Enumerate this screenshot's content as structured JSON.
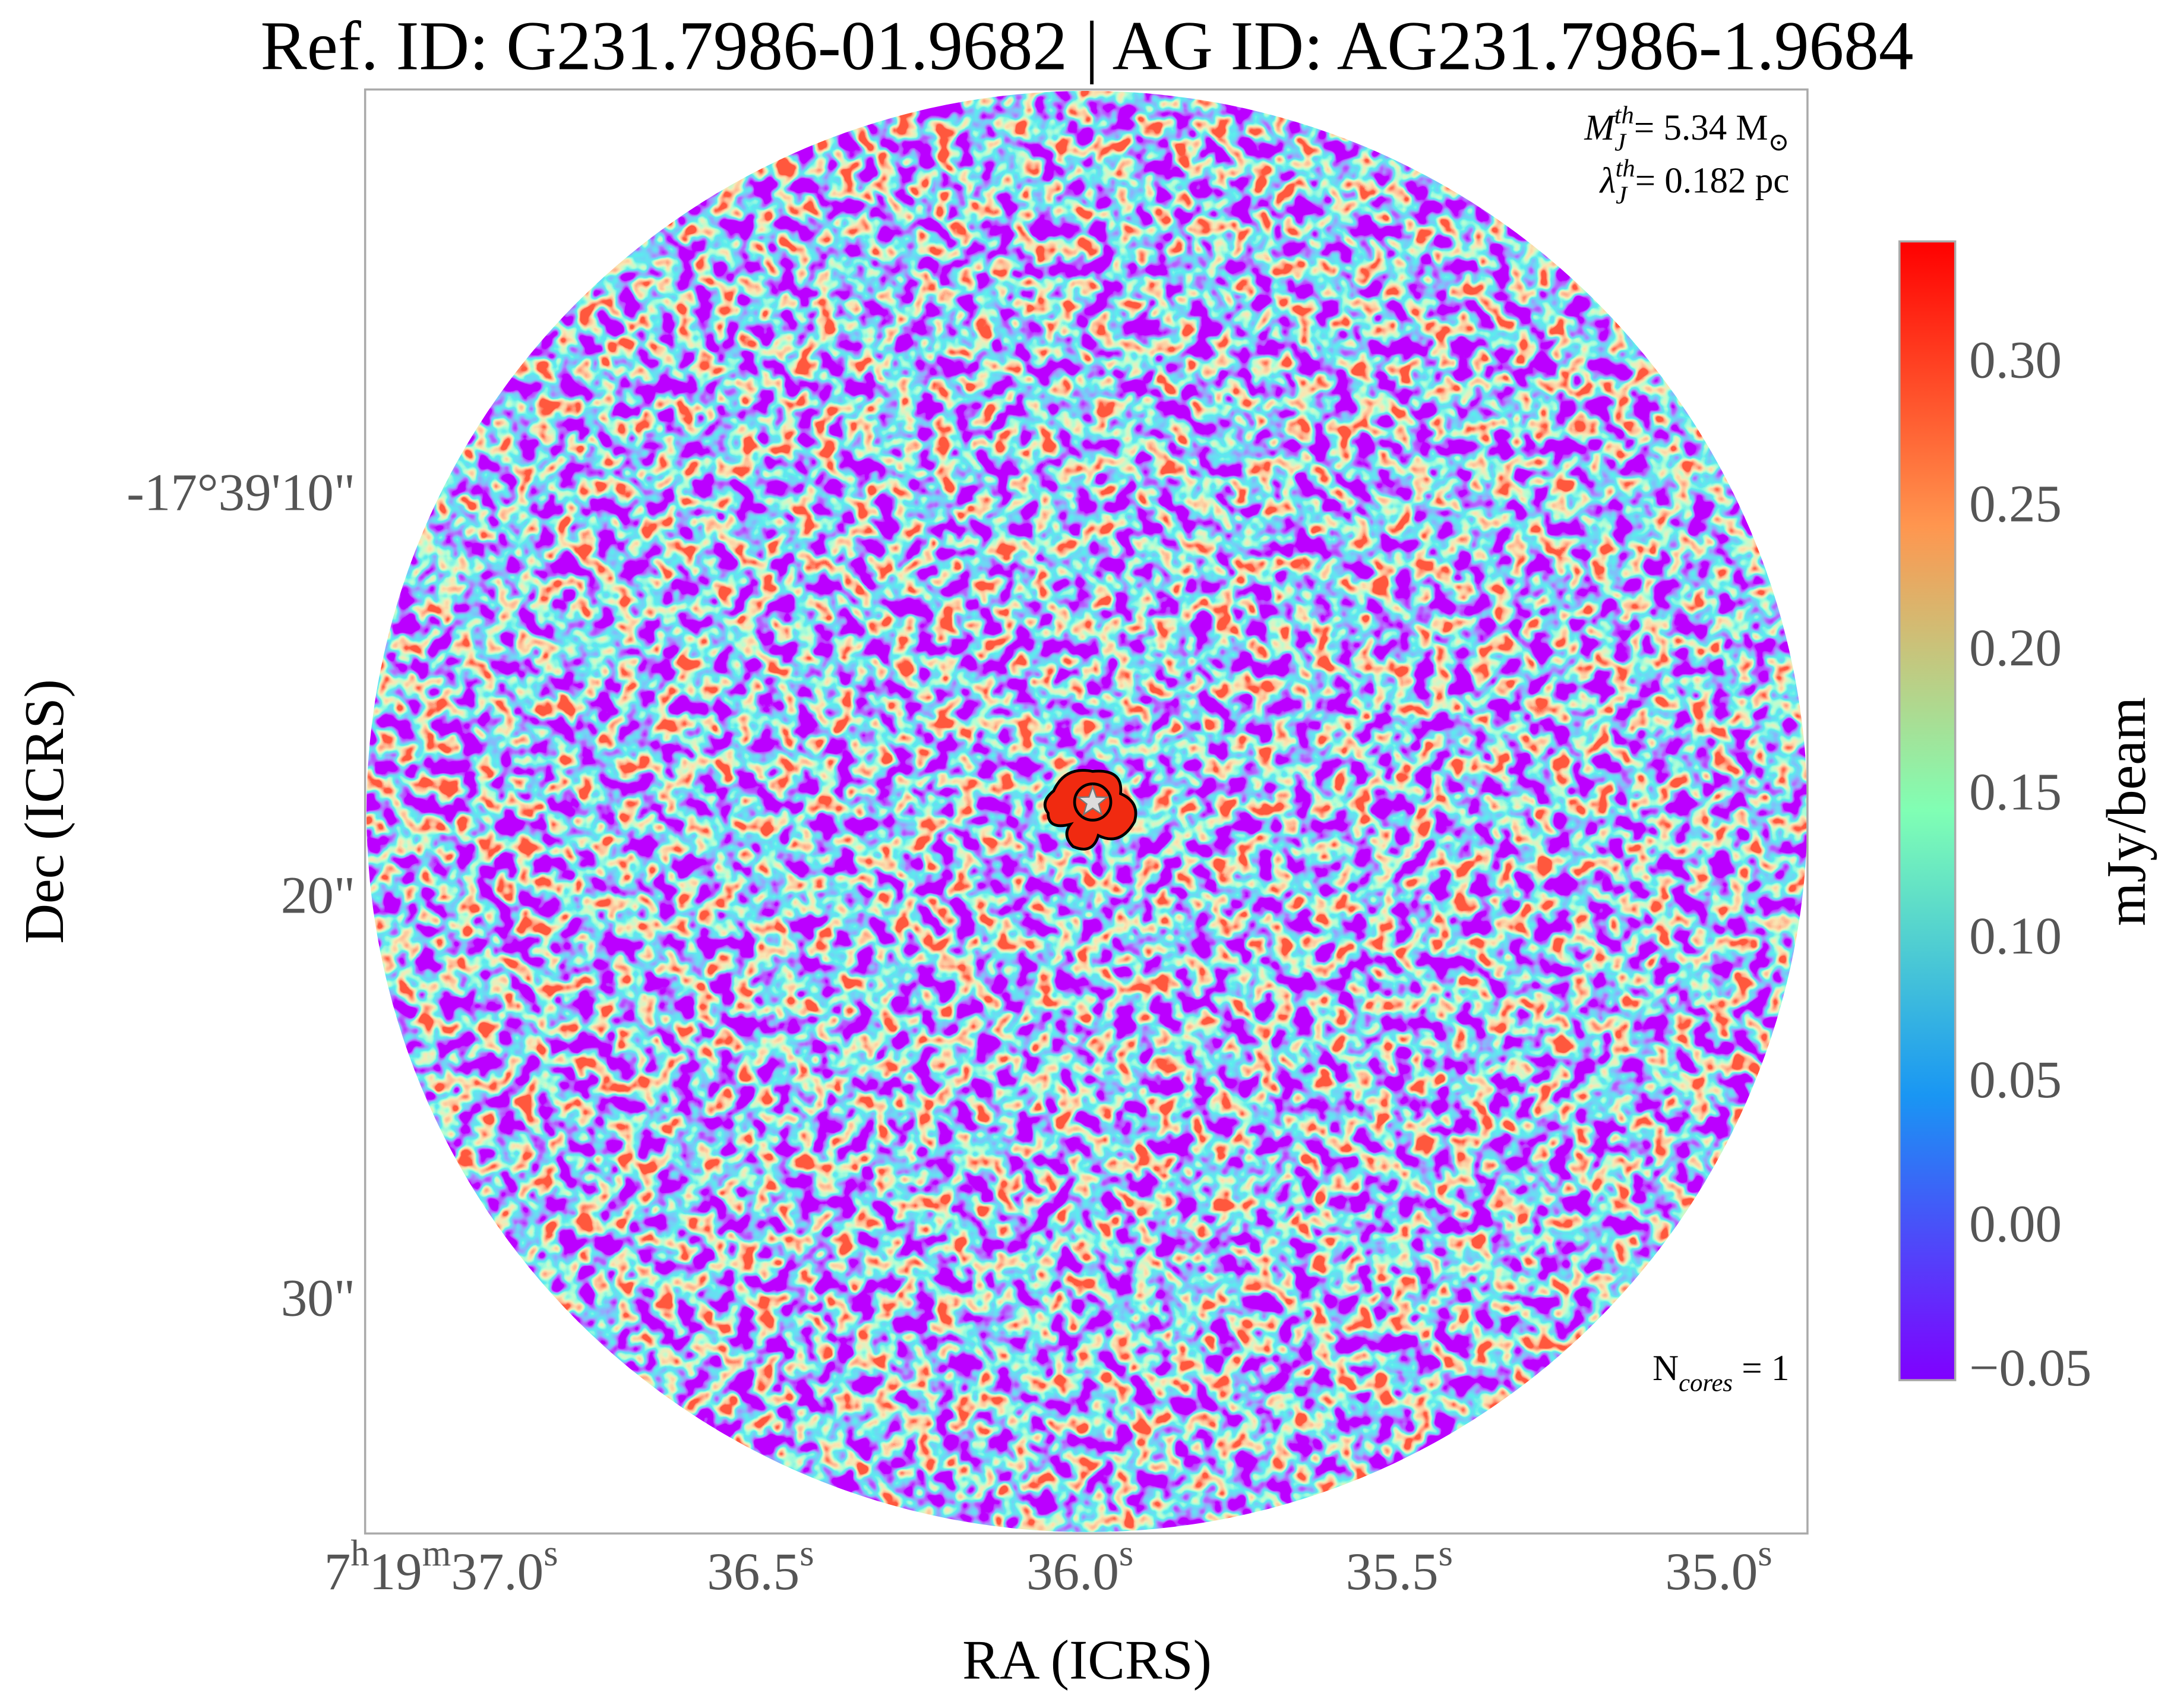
{
  "chart_data": {
    "type": "image",
    "title": "Ref. ID: G231.7986-01.9682 | AG ID: AG231.7986-1.9684",
    "xlabel": "RA (ICRS)",
    "ylabel": "Dec (ICRS)",
    "colorbar_label": "mJy/beam",
    "colormap": "rainbow",
    "xlim": [
      37.119,
      34.861
    ],
    "xticks": [
      {
        "value": 37.0,
        "label": [
          {
            "text": "7"
          },
          {
            "text": "h",
            "style": "sup"
          },
          {
            "text": "19"
          },
          {
            "text": "m",
            "style": "sup"
          },
          {
            "text": "37.0"
          },
          {
            "text": "s",
            "style": "sup"
          }
        ]
      },
      {
        "value": 36.5,
        "label": [
          {
            "text": "36.5"
          },
          {
            "text": "s",
            "style": "sup"
          }
        ]
      },
      {
        "value": 36.0,
        "label": [
          {
            "text": "36.0"
          },
          {
            "text": "s",
            "style": "sup"
          }
        ]
      },
      {
        "value": 35.5,
        "label": [
          {
            "text": "35.5"
          },
          {
            "text": "s",
            "style": "sup"
          }
        ]
      },
      {
        "value": 35.0,
        "label": [
          {
            "text": "35.0"
          },
          {
            "text": "s",
            "style": "sup"
          }
        ]
      }
    ],
    "ylim": [
      35.71,
      -0.14
    ],
    "yticks": [
      {
        "value": 10,
        "label": "-17°39'10\""
      },
      {
        "value": 20,
        "label": "20\""
      },
      {
        "value": 30,
        "label": "30\""
      }
    ],
    "clim": [
      -0.0524,
      0.343
    ],
    "cticks": [
      {
        "value": -0.05,
        "label": "−0.05"
      },
      {
        "value": 0,
        "label": "0.00"
      },
      {
        "value": 0.05,
        "label": "0.05"
      },
      {
        "value": 0.1,
        "label": "0.10"
      },
      {
        "value": 0.15,
        "label": "0.15"
      },
      {
        "value": 0.2,
        "label": "0.20"
      },
      {
        "value": 0.25,
        "label": "0.25"
      },
      {
        "value": 0.3,
        "label": "0.30"
      }
    ],
    "cores": {
      "x": [
        35.98
      ],
      "y": [
        17.55
      ]
    },
    "annotations": [
      [
        {
          "text": "M",
          "style": "italic"
        },
        {
          "text": "J",
          "style": "italic-sub"
        },
        {
          "text": "th",
          "style": "italic-sup"
        },
        {
          "text": "= 5.34 M"
        },
        {
          "text": "⊙",
          "style": "sub"
        }
      ],
      [
        {
          "text": "λ",
          "style": "italic"
        },
        {
          "text": "J",
          "style": "italic-sub"
        },
        {
          "text": "th",
          "style": "italic-sup"
        },
        {
          "text": "= 0.182 pc"
        }
      ],
      [
        {
          "text": "N"
        },
        {
          "text": "cores",
          "style": "italic-sub"
        },
        {
          "text": " = 1"
        }
      ]
    ]
  }
}
